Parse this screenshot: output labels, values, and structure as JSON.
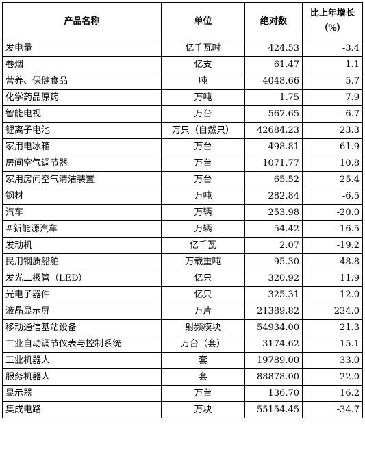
{
  "header": {
    "product": "产品名称",
    "unit": "单位",
    "absolute": "绝对数",
    "growth_line1": "比上年增长",
    "growth_line2": "（%）"
  },
  "rows": [
    {
      "name": "发电量",
      "unit": "亿千瓦时",
      "value": "424.53",
      "growth": "-3.4"
    },
    {
      "name": "卷烟",
      "unit": "亿支",
      "value": "61.47",
      "growth": "1.1"
    },
    {
      "name": "营养、保健食品",
      "unit": "吨",
      "value": "4048.66",
      "growth": "5.7"
    },
    {
      "name": "化学药品原药",
      "unit": "万吨",
      "value": "1.75",
      "growth": "7.9"
    },
    {
      "name": "智能电视",
      "unit": "万台",
      "value": "567.65",
      "growth": "-6.7"
    },
    {
      "name": "锂离子电池",
      "unit": "万只（自然只）",
      "value": "42684.23",
      "growth": "23.3"
    },
    {
      "name": "家用电冰箱",
      "unit": "万台",
      "value": "498.81",
      "growth": "61.9"
    },
    {
      "name": "房间空气调节器",
      "unit": "万台",
      "value": "1071.77",
      "growth": "10.8"
    },
    {
      "name": "家用房间空气清洁装置",
      "unit": "万台",
      "value": "65.52",
      "growth": "25.4"
    },
    {
      "name": "钢材",
      "unit": "万吨",
      "value": "282.84",
      "growth": "-6.5"
    },
    {
      "name": "汽车",
      "unit": "万辆",
      "value": "253.98",
      "growth": "-20.0"
    },
    {
      "name": "#新能源汽车",
      "unit": "万辆",
      "value": "54.42",
      "growth": "-16.5"
    },
    {
      "name": "发动机",
      "unit": "亿千瓦",
      "value": "2.07",
      "growth": "-19.2"
    },
    {
      "name": "民用钢质船舶",
      "unit": "万载重吨",
      "value": "95.30",
      "growth": "48.8"
    },
    {
      "name": "发光二极管（LED）",
      "unit": "亿只",
      "value": "320.92",
      "growth": "11.9"
    },
    {
      "name": "光电子器件",
      "unit": "亿只",
      "value": "325.31",
      "growth": "12.0"
    },
    {
      "name": "液晶显示屏",
      "unit": "万片",
      "value": "21389.82",
      "growth": "234.0"
    },
    {
      "name": "移动通信基站设备",
      "unit": "射频模块",
      "value": "54934.00",
      "growth": "21.3"
    },
    {
      "name": "工业自动调节仪表与控制系统",
      "unit": "万台（套）",
      "value": "3174.62",
      "growth": "15.1"
    },
    {
      "name": "工业机器人",
      "unit": "套",
      "value": "19789.00",
      "growth": "33.0"
    },
    {
      "name": "服务机器人",
      "unit": "套",
      "value": "88878.00",
      "growth": "22.0"
    },
    {
      "name": "显示器",
      "unit": "万台",
      "value": "136.70",
      "growth": "16.2"
    },
    {
      "name": "集成电路",
      "unit": "万块",
      "value": "55154.45",
      "growth": "-34.7"
    }
  ]
}
